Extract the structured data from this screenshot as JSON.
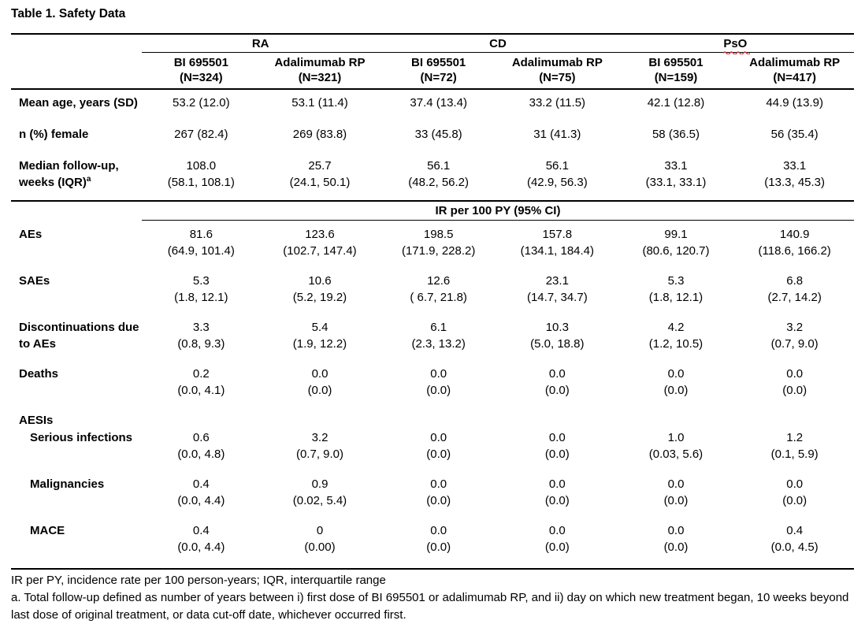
{
  "title": "Table 1. Safety Data",
  "colors": {
    "text": "#000000",
    "rule": "#000000",
    "background": "#ffffff",
    "squiggle_red": "#d13438"
  },
  "table": {
    "groups": [
      {
        "label": "RA"
      },
      {
        "label": "CD"
      },
      {
        "label": "PsO",
        "spellcheck_underline": true
      }
    ],
    "columns": [
      {
        "arm": "BI 695501",
        "n": "(N=324)"
      },
      {
        "arm": "Adalimumab RP",
        "n": "(N=321)"
      },
      {
        "arm": "BI 695501",
        "n": "(N=72)"
      },
      {
        "arm": "Adalimumab RP",
        "n": "(N=75)"
      },
      {
        "arm": "BI 695501",
        "n": "(N=159)"
      },
      {
        "arm": "Adalimumab RP",
        "n": "(N=417)"
      }
    ],
    "baseline_rows": [
      {
        "label": "Mean age, years (SD)",
        "values": [
          "53.2 (12.0)",
          "53.1 (11.4)",
          "37.4 (13.4)",
          "33.2 (11.5)",
          "42.1 (12.8)",
          "44.9 (13.9)"
        ]
      },
      {
        "label": "n (%) female",
        "values": [
          "267 (82.4)",
          "269 (83.8)",
          "33 (45.8)",
          "31 (41.3)",
          "58 (36.5)",
          "56 (35.4)"
        ]
      },
      {
        "label": "Median follow-up,",
        "label2": "weeks (IQR)",
        "label_sup": "a",
        "values": [
          [
            "108.0",
            "(58.1, 108.1)"
          ],
          [
            "25.7",
            "(24.1, 50.1)"
          ],
          [
            "56.1",
            "(48.2, 56.2)"
          ],
          [
            "56.1",
            "(42.9, 56.3)"
          ],
          [
            "33.1",
            "(33.1, 33.1)"
          ],
          [
            "33.1",
            "(13.3, 45.3)"
          ]
        ]
      }
    ],
    "section_header": "IR per 100 PY (95% CI)",
    "ir_rows": [
      {
        "label": "AEs",
        "values": [
          [
            "81.6",
            "(64.9, 101.4)"
          ],
          [
            "123.6",
            "(102.7, 147.4)"
          ],
          [
            "198.5",
            "(171.9, 228.2)"
          ],
          [
            "157.8",
            "(134.1, 184.4)"
          ],
          [
            "99.1",
            "(80.6, 120.7)"
          ],
          [
            "140.9",
            "(118.6, 166.2)"
          ]
        ]
      },
      {
        "label": "SAEs",
        "values": [
          [
            "5.3",
            "(1.8, 12.1)"
          ],
          [
            "10.6",
            "(5.2, 19.2)"
          ],
          [
            "12.6",
            "( 6.7, 21.8)"
          ],
          [
            "23.1",
            "(14.7, 34.7)"
          ],
          [
            "5.3",
            "(1.8, 12.1)"
          ],
          [
            "6.8",
            "(2.7, 14.2)"
          ]
        ]
      },
      {
        "label": "Discontinuations due",
        "label2": "to AEs",
        "values": [
          [
            "3.3",
            "(0.8, 9.3)"
          ],
          [
            "5.4",
            "(1.9, 12.2)"
          ],
          [
            "6.1",
            "(2.3, 13.2)"
          ],
          [
            "10.3",
            "(5.0, 18.8)"
          ],
          [
            "4.2",
            "(1.2, 10.5)"
          ],
          [
            "3.2",
            "(0.7, 9.0)"
          ]
        ]
      },
      {
        "label": "Deaths",
        "values": [
          [
            "0.2",
            "(0.0, 4.1)"
          ],
          [
            "0.0",
            "(0.0)"
          ],
          [
            "0.0",
            "(0.0)"
          ],
          [
            "0.0",
            "(0.0)"
          ],
          [
            "0.0",
            "(0.0)"
          ],
          [
            "0.0",
            "(0.0)"
          ]
        ]
      },
      {
        "label": "AESIs",
        "values": null
      },
      {
        "label": "Serious infections",
        "indent": true,
        "values": [
          [
            "0.6",
            "(0.0, 4.8)"
          ],
          [
            "3.2",
            "(0.7, 9.0)"
          ],
          [
            "0.0",
            "(0.0)"
          ],
          [
            "0.0",
            "(0.0)"
          ],
          [
            "1.0",
            "(0.03, 5.6)"
          ],
          [
            "1.2",
            "(0.1, 5.9)"
          ]
        ]
      },
      {
        "label": "Malignancies",
        "indent": true,
        "values": [
          [
            "0.4",
            "(0.0, 4.4)"
          ],
          [
            "0.9",
            "(0.02, 5.4)"
          ],
          [
            "0.0",
            "(0.0)"
          ],
          [
            "0.0",
            "(0.0)"
          ],
          [
            "0.0",
            "(0.0)"
          ],
          [
            "0.0",
            "(0.0)"
          ]
        ]
      },
      {
        "label": "MACE",
        "indent": true,
        "values": [
          [
            "0.4",
            "(0.0, 4.4)"
          ],
          [
            "0",
            "(0.00)"
          ],
          [
            "0.0",
            "(0.0)"
          ],
          [
            "0.0",
            "(0.0)"
          ],
          [
            "0.0",
            "(0.0)"
          ],
          [
            "0.4",
            "(0.0, 4.5)"
          ]
        ]
      }
    ],
    "footnotes": [
      "IR per PY, incidence rate per 100 person-years; IQR, interquartile range",
      "a. Total follow-up defined as number of years between i) first dose of BI 695501 or adalimumab RP, and ii) day on which new treatment began, 10 weeks beyond last dose of original treatment, or data cut-off date, whichever occurred first."
    ]
  }
}
